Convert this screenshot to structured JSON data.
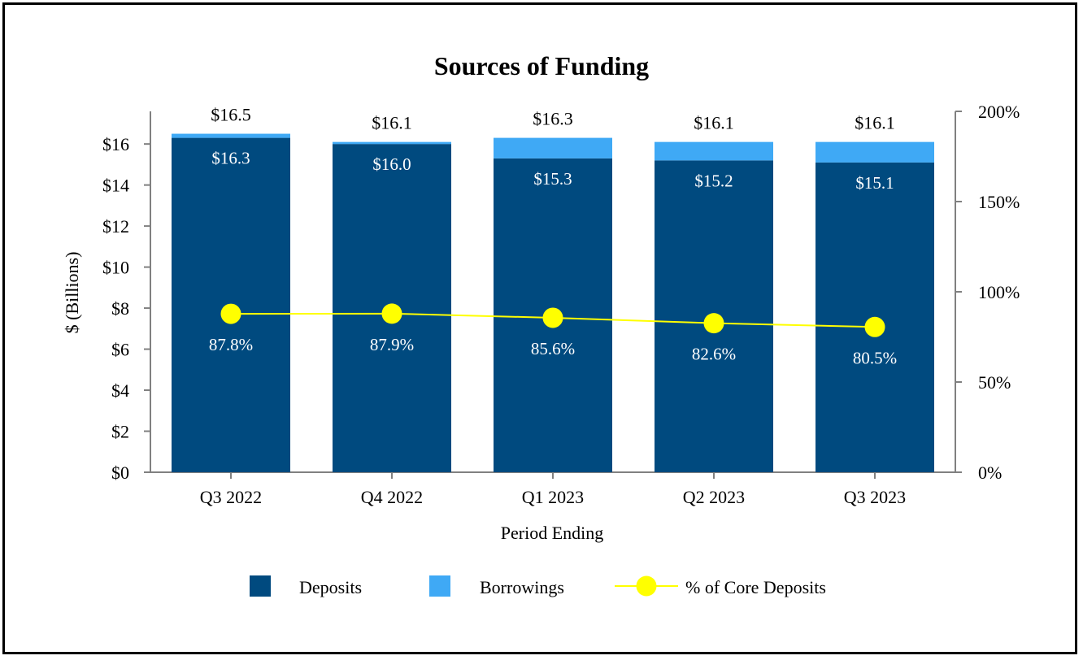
{
  "chart_data": {
    "type": "bar",
    "stacked": true,
    "title": "Sources of Funding",
    "xlabel": "Period Ending",
    "ylabel": "$ (Billions)",
    "ylim": [
      0,
      17.5
    ],
    "y2lim": [
      0,
      200
    ],
    "y_ticks": [
      "$0",
      "$2",
      "$4",
      "$6",
      "$8",
      "$10",
      "$12",
      "$14",
      "$16"
    ],
    "y2_ticks": [
      "0%",
      "50%",
      "100%",
      "150%",
      "200%"
    ],
    "categories": [
      "Q3 2022",
      "Q4 2022",
      "Q1 2023",
      "Q2 2023",
      "Q3 2023"
    ],
    "series": [
      {
        "name": "Deposits",
        "type": "bar",
        "color": "#004a7f",
        "values": [
          16.3,
          16.0,
          15.3,
          15.2,
          15.1
        ],
        "labels": [
          "$16.3",
          "$16.0",
          "$15.3",
          "$15.2",
          "$15.1"
        ]
      },
      {
        "name": "Borrowings",
        "type": "bar",
        "color": "#3fa9f5",
        "values": [
          0.2,
          0.1,
          1.0,
          0.9,
          1.0
        ]
      },
      {
        "name": "% of Core Deposits",
        "type": "line",
        "axis": "right",
        "color": "#ffff00",
        "values": [
          87.8,
          87.9,
          85.6,
          82.6,
          80.5
        ],
        "labels": [
          "87.8%",
          "87.9%",
          "85.6%",
          "82.6%",
          "80.5%"
        ]
      }
    ],
    "totals": [
      16.5,
      16.1,
      16.3,
      16.1,
      16.1
    ],
    "total_labels": [
      "$16.5",
      "$16.1",
      "$16.3",
      "$16.1",
      "$16.1"
    ],
    "grid": false,
    "legend": "bottom"
  }
}
